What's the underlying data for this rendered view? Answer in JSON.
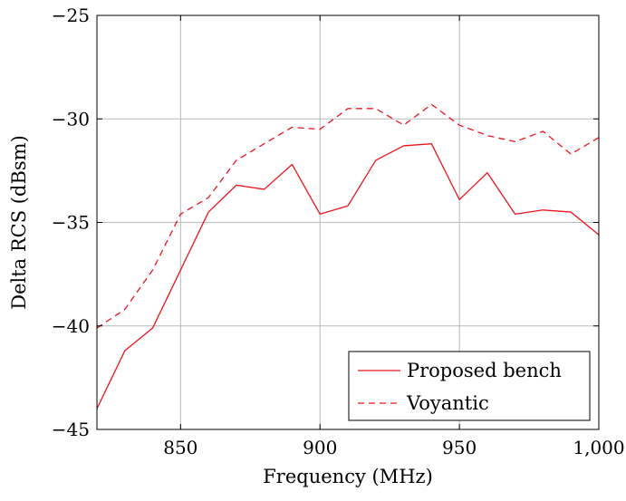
{
  "chart_data": {
    "type": "line",
    "title": "",
    "xlabel": "Frequency (MHz)",
    "ylabel": "Delta RCS (dBsm)",
    "xlim": [
      820,
      1000
    ],
    "ylim": [
      -45,
      -25
    ],
    "xticks": [
      850,
      900,
      950,
      1000
    ],
    "yticks": [
      -45,
      -40,
      -35,
      -30,
      -25
    ],
    "xtick_labels": [
      "850",
      "900",
      "950",
      "1,000"
    ],
    "ytick_labels": [
      "−45",
      "−40",
      "−35",
      "−30",
      "−25"
    ],
    "grid": true,
    "legend_position": "bottom-right",
    "x": [
      820,
      830,
      840,
      850,
      860,
      870,
      880,
      890,
      900,
      910,
      920,
      930,
      940,
      950,
      960,
      970,
      980,
      990,
      1000
    ],
    "series": [
      {
        "name": "Proposed bench",
        "style": "solid",
        "color": "#e8141c",
        "values": [
          -44.0,
          -41.2,
          -40.1,
          -37.3,
          -34.5,
          -33.2,
          -33.4,
          -32.2,
          -34.6,
          -34.2,
          -32.0,
          -31.3,
          -31.2,
          -33.9,
          -32.6,
          -34.6,
          -34.4,
          -34.5,
          -35.6
        ]
      },
      {
        "name": "Voyantic",
        "style": "dashed",
        "color": "#e8141c",
        "values": [
          -40.1,
          -39.2,
          -37.3,
          -34.6,
          -33.8,
          -32.0,
          -31.2,
          -30.4,
          -30.5,
          -29.5,
          -29.5,
          -30.3,
          -29.3,
          -30.3,
          -30.8,
          -31.1,
          -30.6,
          -31.7,
          -30.9
        ]
      }
    ]
  }
}
